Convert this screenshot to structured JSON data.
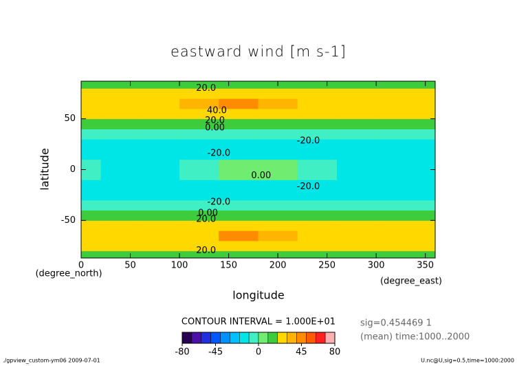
{
  "chart_data": {
    "type": "contour",
    "title": "eastward wind [m s-1]",
    "xlabel": "longitude",
    "ylabel": "latitude",
    "x_unit": "(degree_east)",
    "y_unit": "(degree_north)",
    "xlim": [
      0,
      360
    ],
    "ylim": [
      -87,
      87
    ],
    "xticks": [
      0,
      50,
      100,
      150,
      200,
      250,
      300,
      350
    ],
    "yticks": [
      -50,
      0,
      50
    ],
    "lon": [
      0,
      40,
      80,
      120,
      160,
      200,
      240,
      280,
      320
    ],
    "lat": [
      -85,
      -75,
      -65,
      -55,
      -45,
      -35,
      -25,
      -15,
      -5,
      5,
      15,
      25,
      35,
      45,
      55,
      65,
      75,
      85
    ],
    "z": [
      [
        14,
        15,
        15,
        16,
        16,
        16,
        15,
        15,
        14
      ],
      [
        22,
        22,
        23,
        23,
        23,
        23,
        22,
        22,
        22
      ],
      [
        25,
        25,
        26,
        28,
        40,
        30,
        26,
        25,
        25
      ],
      [
        24,
        24,
        25,
        25,
        26,
        25,
        24,
        24,
        24
      ],
      [
        12,
        12,
        13,
        13,
        13,
        13,
        12,
        12,
        12
      ],
      [
        -4,
        -4,
        -5,
        -5,
        -5,
        -5,
        -4,
        -4,
        -4
      ],
      [
        -12,
        -12,
        -13,
        -13,
        -13,
        -13,
        -12,
        -12,
        -12
      ],
      [
        -15,
        -16,
        -16,
        -14,
        -12,
        -13,
        -15,
        -16,
        -16
      ],
      [
        -5,
        -15,
        -12,
        -5,
        3,
        0,
        -8,
        -15,
        -12
      ],
      [
        -5,
        -15,
        -12,
        -5,
        3,
        0,
        -8,
        -15,
        -12
      ],
      [
        -15,
        -16,
        -16,
        -14,
        -12,
        -13,
        -15,
        -16,
        -16
      ],
      [
        -12,
        -12,
        -13,
        -13,
        -13,
        -13,
        -12,
        -12,
        -12
      ],
      [
        -4,
        -4,
        -5,
        -5,
        -5,
        -5,
        -4,
        -4,
        -4
      ],
      [
        12,
        12,
        13,
        13,
        13,
        13,
        12,
        12,
        12
      ],
      [
        24,
        24,
        25,
        25,
        26,
        25,
        24,
        24,
        24
      ],
      [
        25,
        25,
        26,
        30,
        40,
        34,
        26,
        25,
        25
      ],
      [
        22,
        22,
        23,
        23,
        23,
        23,
        22,
        22,
        22
      ],
      [
        14,
        15,
        15,
        16,
        16,
        16,
        15,
        15,
        14
      ]
    ],
    "levels": [
      -80,
      -70,
      -60,
      -50,
      -40,
      -30,
      -20,
      -10,
      0,
      10,
      20,
      30,
      40,
      50,
      60,
      70,
      80
    ],
    "colors": [
      "#2a0050",
      "#4a10a8",
      "#2030e0",
      "#0058ff",
      "#0090ff",
      "#00c0ff",
      "#00e6e6",
      "#40f0c4",
      "#70ec70",
      "#3ccc3c",
      "#ffd800",
      "#ffb400",
      "#ff8c00",
      "#ff5a00",
      "#ff2020",
      "#ffb0b0"
    ],
    "colorbar_ticks": [
      -80,
      -45,
      0,
      45,
      80
    ],
    "contour_labels": [
      {
        "value": 20,
        "label": "20.0",
        "x": 127,
        "y": 80
      },
      {
        "value": 40,
        "label": "40.0",
        "x": 138,
        "y": 58
      },
      {
        "value": 20,
        "label": "20.0",
        "x": 136,
        "y": 48
      },
      {
        "value": 0,
        "label": "0.00",
        "x": 136,
        "y": 41
      },
      {
        "value": -20,
        "label": "-20.0",
        "x": 231,
        "y": 28
      },
      {
        "value": -20,
        "label": "-20.0",
        "x": 140,
        "y": 16
      },
      {
        "value": 0,
        "label": "0.00",
        "x": 183,
        "y": -6
      },
      {
        "value": -20,
        "label": "-20.0",
        "x": 231,
        "y": -17
      },
      {
        "value": -20,
        "label": "-20.0",
        "x": 140,
        "y": -32
      },
      {
        "value": 0,
        "label": "0.00",
        "x": 129,
        "y": -43
      },
      {
        "value": 20,
        "label": "20.0",
        "x": 127,
        "y": -49
      },
      {
        "value": 20,
        "label": "20.0",
        "x": 127,
        "y": -80
      }
    ],
    "contour_interval": "CONTOUR INTERVAL = 1.000E+01",
    "notes": [
      "sig=0.454469 1",
      "(mean) time:1000..2000"
    ],
    "footer_left": "./gpview_custom-ym06  2009-07-01",
    "footer_right": "U.nc@U,sig=0.5,time=1000:2000"
  }
}
